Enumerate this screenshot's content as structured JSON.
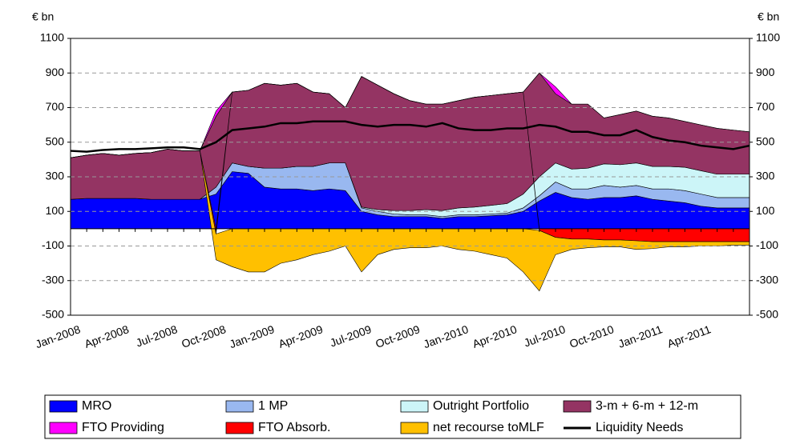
{
  "chart_data": {
    "type": "area",
    "ylabel": "€ bn",
    "y2label": "€ bn",
    "categories": [
      "Jan-2008",
      null,
      null,
      "Apr-2008",
      null,
      null,
      "Jul-2008",
      null,
      null,
      "Oct-2008",
      null,
      null,
      "Jan-2009",
      null,
      null,
      "Apr-2009",
      null,
      null,
      "Jul-2009",
      null,
      null,
      "Oct-2009",
      null,
      null,
      "Jan-2010",
      null,
      null,
      "Apr-2010",
      null,
      null,
      "Jul-2010",
      null,
      null,
      "Oct-2010",
      null,
      null,
      "Jan-2011",
      null,
      null,
      "Apr-2011",
      null,
      null,
      null
    ],
    "series": [
      {
        "name": "MRO",
        "color": "#0000ff",
        "values": [
          170,
          175,
          175,
          175,
          175,
          170,
          170,
          170,
          170,
          200,
          330,
          320,
          240,
          230,
          230,
          220,
          230,
          220,
          100,
          80,
          70,
          70,
          70,
          60,
          70,
          70,
          75,
          80,
          100,
          160,
          210,
          180,
          170,
          180,
          180,
          190,
          170,
          160,
          150,
          130,
          120,
          120,
          120
        ]
      },
      {
        "name": "1 MP",
        "color": "#99b8f0",
        "values": [
          0,
          0,
          0,
          0,
          0,
          0,
          0,
          0,
          0,
          40,
          50,
          40,
          110,
          120,
          130,
          140,
          150,
          160,
          20,
          20,
          15,
          10,
          10,
          10,
          10,
          10,
          10,
          10,
          20,
          30,
          60,
          50,
          60,
          70,
          60,
          60,
          60,
          70,
          70,
          70,
          60,
          60,
          60
        ]
      },
      {
        "name": "Outright Portfolio",
        "color": "#ccf5f8",
        "values": [
          0,
          0,
          0,
          0,
          0,
          0,
          0,
          0,
          0,
          0,
          0,
          0,
          0,
          0,
          0,
          0,
          0,
          0,
          5,
          10,
          20,
          25,
          30,
          35,
          40,
          45,
          50,
          55,
          80,
          110,
          110,
          115,
          120,
          125,
          130,
          130,
          130,
          130,
          135,
          135,
          135,
          135,
          135
        ]
      },
      {
        "name": "3-m + 6-m + 12-m",
        "color": "#943463",
        "values": [
          240,
          250,
          260,
          250,
          260,
          270,
          290,
          280,
          280,
          410,
          410,
          440,
          490,
          480,
          480,
          430,
          400,
          320,
          755,
          720,
          675,
          635,
          610,
          615,
          620,
          635,
          635,
          635,
          590,
          600,
          400,
          375,
          370,
          265,
          290,
          300,
          290,
          280,
          265,
          265,
          265,
          255,
          245
        ]
      },
      {
        "name": "FTO Providing",
        "color": "#ff00ff",
        "values": [
          0,
          0,
          0,
          0,
          0,
          0,
          0,
          0,
          0,
          30,
          0,
          0,
          0,
          0,
          0,
          0,
          0,
          0,
          0,
          0,
          0,
          0,
          0,
          0,
          0,
          0,
          0,
          0,
          0,
          0,
          40,
          0,
          0,
          0,
          0,
          0,
          0,
          0,
          0,
          0,
          0,
          0,
          0
        ]
      },
      {
        "name": "FTO Absorb.",
        "color": "#ff0000",
        "values": [
          0,
          0,
          0,
          0,
          0,
          0,
          0,
          0,
          0,
          -30,
          0,
          0,
          0,
          0,
          0,
          0,
          0,
          0,
          0,
          0,
          0,
          0,
          0,
          0,
          0,
          0,
          0,
          0,
          0,
          -10,
          -50,
          -60,
          -60,
          -65,
          -65,
          -70,
          -75,
          -75,
          -75,
          -75,
          -75,
          -75,
          -75
        ]
      },
      {
        "name": "net recourse toMLF",
        "color": "#ffc000",
        "values": [
          0,
          0,
          0,
          0,
          0,
          0,
          0,
          0,
          0,
          -150,
          -220,
          -250,
          -250,
          -200,
          -180,
          -150,
          -130,
          -100,
          -250,
          -150,
          -120,
          -110,
          -110,
          -100,
          -120,
          -130,
          -150,
          -170,
          -250,
          -350,
          -100,
          -60,
          -50,
          -40,
          -40,
          -50,
          -40,
          -30,
          -30,
          -25,
          -25,
          -20,
          -20
        ]
      },
      {
        "name": "Liquidity Needs",
        "color": "#000000",
        "type": "line",
        "values": [
          450,
          445,
          455,
          460,
          460,
          465,
          470,
          470,
          460,
          500,
          570,
          580,
          590,
          610,
          610,
          620,
          620,
          620,
          600,
          590,
          600,
          600,
          590,
          610,
          580,
          570,
          570,
          580,
          580,
          600,
          590,
          560,
          560,
          540,
          540,
          570,
          530,
          510,
          500,
          480,
          470,
          460,
          480
        ]
      }
    ],
    "ylim": [
      -500,
      1100
    ],
    "yticks": [
      -500,
      -300,
      -100,
      100,
      300,
      500,
      700,
      900,
      1100
    ],
    "y2lim": [
      -500,
      1100
    ],
    "y2ticks": [
      -500,
      -300,
      -100,
      100,
      300,
      500,
      700,
      900,
      1100
    ],
    "grid": true,
    "legend": "bottom"
  }
}
